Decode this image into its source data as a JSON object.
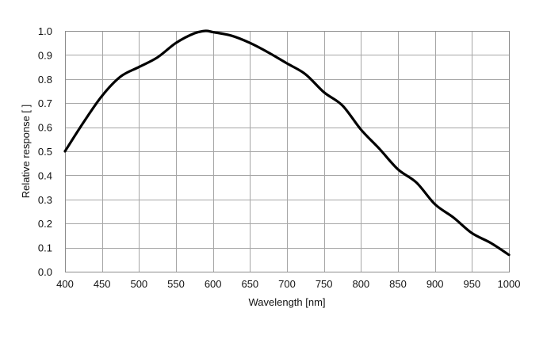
{
  "chart_data": {
    "type": "line",
    "title": "",
    "xlabel": "Wavelength [nm]",
    "ylabel": "Relative response [ ]",
    "xlim": [
      400,
      1000
    ],
    "ylim": [
      0,
      1
    ],
    "xticks": [
      400,
      450,
      500,
      550,
      600,
      650,
      700,
      750,
      800,
      850,
      900,
      950,
      1000
    ],
    "xtick_labels": [
      "400",
      "450",
      "500",
      "550",
      "600",
      "650",
      "700",
      "750",
      "800",
      "850",
      "900",
      "950",
      "1000"
    ],
    "yticks": [
      0,
      0.1,
      0.2,
      0.3,
      0.4,
      0.5,
      0.6,
      0.7,
      0.8,
      0.9,
      1.0
    ],
    "ytick_labels": [
      "0.0",
      "0.1",
      "0.2",
      "0.3",
      "0.4",
      "0.5",
      "0.6",
      "0.7",
      "0.8",
      "0.9",
      "1.0"
    ],
    "grid": true,
    "legend": "none",
    "line_color": "#000000",
    "series": [
      {
        "x": [
          400,
          425,
          450,
          475,
          500,
          525,
          550,
          575,
          590,
          600,
          625,
          650,
          675,
          700,
          725,
          750,
          775,
          800,
          825,
          850,
          875,
          900,
          925,
          950,
          975,
          1000
        ],
        "values": [
          0.5,
          0.62,
          0.73,
          0.81,
          0.85,
          0.89,
          0.95,
          0.99,
          1.0,
          0.995,
          0.98,
          0.95,
          0.91,
          0.865,
          0.82,
          0.745,
          0.69,
          0.59,
          0.51,
          0.425,
          0.37,
          0.28,
          0.225,
          0.16,
          0.12,
          0.07
        ]
      }
    ]
  }
}
